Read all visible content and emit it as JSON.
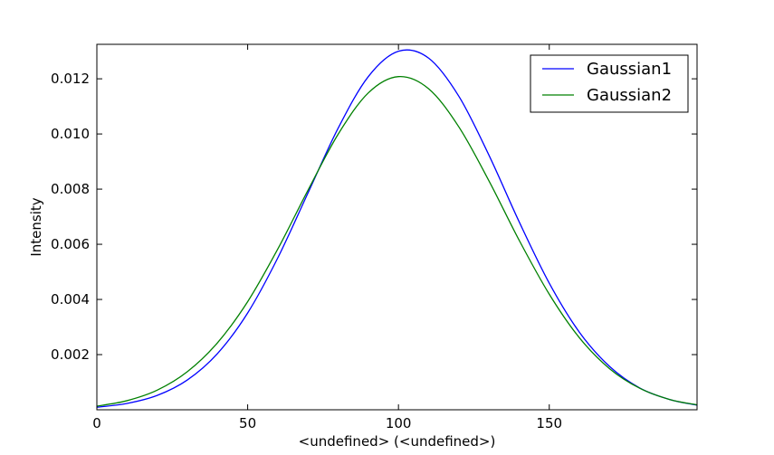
{
  "chart_data": {
    "type": "line",
    "title": "",
    "xlabel": "<undefined> (<undefined>)",
    "ylabel": "Intensity",
    "xlim": [
      0,
      199
    ],
    "ylim": [
      0,
      0.01325
    ],
    "x_ticks": [
      0,
      50,
      100,
      150
    ],
    "x_tick_labels": [
      "0",
      "50",
      "100",
      "150"
    ],
    "y_ticks": [
      0.002,
      0.004,
      0.006,
      0.008,
      0.01,
      0.012
    ],
    "y_tick_labels": [
      "0.002",
      "0.004",
      "0.006",
      "0.008",
      "0.010",
      "0.012"
    ],
    "grid": false,
    "legend_position": "top-right",
    "x": [
      0,
      10,
      20,
      30,
      40,
      50,
      60,
      70,
      80,
      90,
      100,
      110,
      120,
      130,
      140,
      150,
      160,
      170,
      180,
      190,
      199
    ],
    "series": [
      {
        "name": "Gaussian1",
        "color": "#0000ff",
        "values": [
          9e-05,
          0.00023,
          0.00052,
          0.00108,
          0.00204,
          0.00351,
          0.00551,
          0.00786,
          0.01021,
          0.01208,
          0.013,
          0.01275,
          0.01137,
          0.00923,
          0.00682,
          0.00459,
          0.00281,
          0.00157,
          0.00079,
          0.00037,
          0.00017
        ]
      },
      {
        "name": "Gaussian2",
        "color": "#008000",
        "values": [
          0.00013,
          0.00033,
          0.00071,
          0.00138,
          0.00243,
          0.00392,
          0.00583,
          0.00796,
          0.00999,
          0.01149,
          0.01208,
          0.01164,
          0.01026,
          0.0083,
          0.00615,
          0.00419,
          0.00261,
          0.00149,
          0.00078,
          0.00037,
          0.00018
        ]
      }
    ]
  }
}
